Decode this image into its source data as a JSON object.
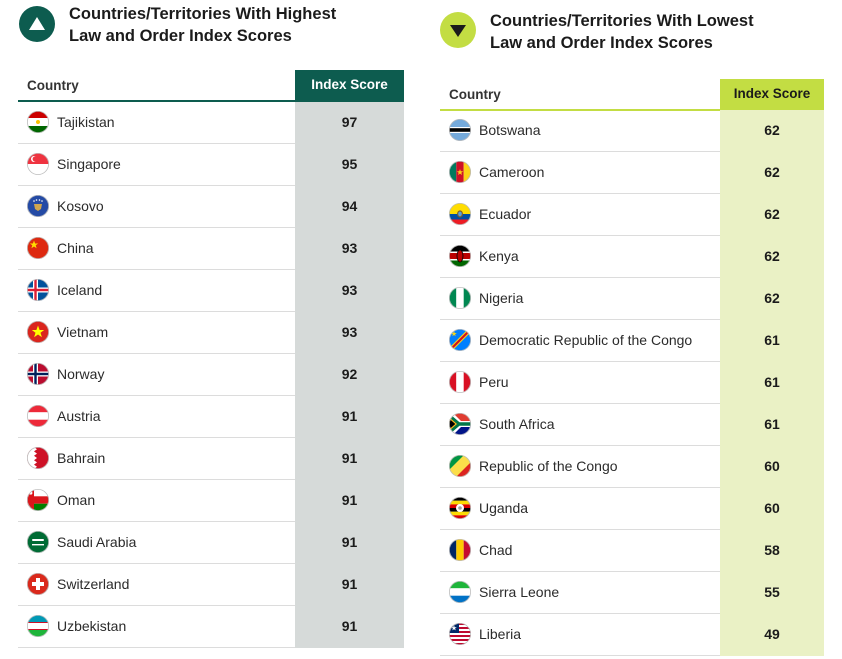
{
  "highest": {
    "title_line1": "Countries/Territories With Highest",
    "title_line2": "Law and Order Index Scores",
    "badge_icon": "triangle-up-icon",
    "accent": "#0d5c4f",
    "col_country": "Country",
    "col_score": "Index Score",
    "rows": [
      {
        "country": "Tajikistan",
        "score": "97",
        "flag": "tajikistan"
      },
      {
        "country": "Singapore",
        "score": "95",
        "flag": "singapore"
      },
      {
        "country": "Kosovo",
        "score": "94",
        "flag": "kosovo"
      },
      {
        "country": "China",
        "score": "93",
        "flag": "china"
      },
      {
        "country": "Iceland",
        "score": "93",
        "flag": "iceland"
      },
      {
        "country": "Vietnam",
        "score": "93",
        "flag": "vietnam"
      },
      {
        "country": "Norway",
        "score": "92",
        "flag": "norway"
      },
      {
        "country": "Austria",
        "score": "91",
        "flag": "austria"
      },
      {
        "country": "Bahrain",
        "score": "91",
        "flag": "bahrain"
      },
      {
        "country": "Oman",
        "score": "91",
        "flag": "oman"
      },
      {
        "country": "Saudi Arabia",
        "score": "91",
        "flag": "saudi-arabia"
      },
      {
        "country": "Switzerland",
        "score": "91",
        "flag": "switzerland"
      },
      {
        "country": "Uzbekistan",
        "score": "91",
        "flag": "uzbekistan"
      }
    ]
  },
  "lowest": {
    "title_line1": "Countries/Territories With Lowest",
    "title_line2": "Law and Order Index Scores",
    "badge_icon": "triangle-down-icon",
    "accent": "#c3dd43",
    "col_country": "Country",
    "col_score": "Index Score",
    "rows": [
      {
        "country": "Botswana",
        "score": "62",
        "flag": "botswana"
      },
      {
        "country": "Cameroon",
        "score": "62",
        "flag": "cameroon"
      },
      {
        "country": "Ecuador",
        "score": "62",
        "flag": "ecuador"
      },
      {
        "country": "Kenya",
        "score": "62",
        "flag": "kenya"
      },
      {
        "country": "Nigeria",
        "score": "62",
        "flag": "nigeria"
      },
      {
        "country": "Democratic Republic of the Congo",
        "score": "61",
        "flag": "dr-congo"
      },
      {
        "country": "Peru",
        "score": "61",
        "flag": "peru"
      },
      {
        "country": "South Africa",
        "score": "61",
        "flag": "south-africa"
      },
      {
        "country": "Republic of the Congo",
        "score": "60",
        "flag": "republic-of-the-congo"
      },
      {
        "country": "Uganda",
        "score": "60",
        "flag": "uganda"
      },
      {
        "country": "Chad",
        "score": "58",
        "flag": "chad"
      },
      {
        "country": "Sierra Leone",
        "score": "55",
        "flag": "sierra-leone"
      },
      {
        "country": "Liberia",
        "score": "49",
        "flag": "liberia"
      }
    ]
  }
}
